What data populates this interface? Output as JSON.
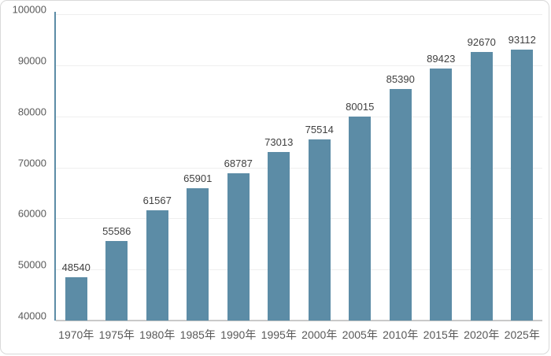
{
  "chart_data": {
    "type": "bar",
    "title": "",
    "xlabel": "",
    "ylabel": "",
    "categories": [
      "1970年",
      "1975年",
      "1980年",
      "1985年",
      "1990年",
      "1995年",
      "2000年",
      "2005年",
      "2010年",
      "2015年",
      "2020年",
      "2025年"
    ],
    "values": [
      48540,
      55586,
      61567,
      65901,
      68787,
      73013,
      75514,
      80015,
      85390,
      89423,
      92670,
      93112
    ],
    "ylim": [
      40000,
      100000
    ],
    "yticks": [
      40000,
      50000,
      60000,
      70000,
      80000,
      90000,
      100000
    ],
    "grid": true,
    "legend": "none",
    "value_labels_shown": true
  },
  "colors": {
    "bar_fill": "#5C8CA6",
    "y_axis_line": "#5C8CA6",
    "x_axis_line": "#C9C9C9",
    "gridline": "#EFEFEF",
    "axis_tick_text": "#595959",
    "value_label_text": "#404040",
    "frame_border": "#D9D9D9",
    "background": "#FFFFFF"
  }
}
